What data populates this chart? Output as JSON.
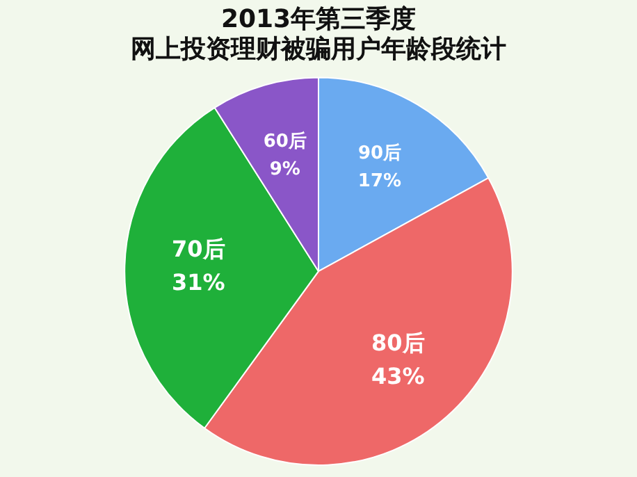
{
  "chart_data": {
    "type": "pie",
    "title": "2013年第三季度",
    "subtitle": "网上投资理财被骗用户年龄段统计",
    "categories": [
      "90后",
      "80后",
      "70后",
      "60后"
    ],
    "values": [
      17,
      43,
      31,
      9
    ],
    "value_labels": [
      "17%",
      "43%",
      "31%",
      "9%"
    ],
    "colors": [
      "#6aaaf0",
      "#ee6868",
      "#1fb03a",
      "#8a56c8"
    ],
    "legend": false
  }
}
